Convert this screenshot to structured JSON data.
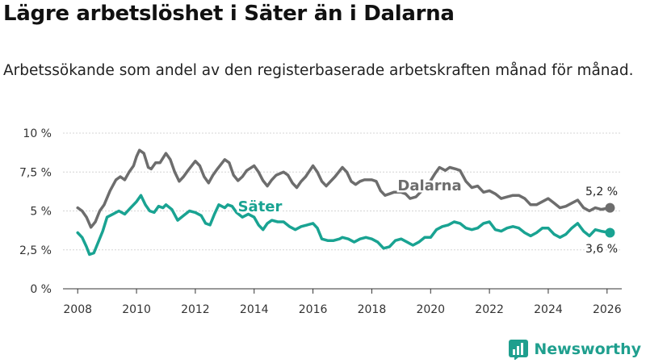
{
  "page": {
    "title": "Lägre arbetslöshet i Säter än i Dalarna",
    "subtitle": "Arbetssökande som andel av den registerbaserade arbetskraften månad för månad."
  },
  "brand": {
    "name": "Newsworthy",
    "color": "#1f9f8e"
  },
  "chart_data": {
    "type": "line",
    "ylim": [
      0,
      10
    ],
    "xlim": [
      2007.5,
      2026.5
    ],
    "y_ticks": [
      0,
      2.5,
      5,
      7.5,
      10
    ],
    "y_tick_labels": [
      "0 %",
      "2,5 %",
      "5 %",
      "7,5 %",
      "10 %"
    ],
    "x_ticks": [
      2008,
      2010,
      2012,
      2014,
      2016,
      2018,
      2020,
      2022,
      2024,
      2026
    ],
    "x_tick_labels": [
      "2008",
      "2010",
      "2012",
      "2014",
      "2016",
      "2018",
      "2020",
      "2022",
      "2024",
      "2026"
    ],
    "grid": "horizontal",
    "series": [
      {
        "name": "Dalarna",
        "color": "#6d6d6d",
        "end_label": "5,2 %",
        "points": [
          [
            2008.0,
            5.2
          ],
          [
            2008.15,
            5.0
          ],
          [
            2008.3,
            4.6
          ],
          [
            2008.45,
            3.95
          ],
          [
            2008.6,
            4.3
          ],
          [
            2008.75,
            5.0
          ],
          [
            2008.9,
            5.4
          ],
          [
            2009.1,
            6.3
          ],
          [
            2009.3,
            7.0
          ],
          [
            2009.45,
            7.2
          ],
          [
            2009.6,
            7.0
          ],
          [
            2009.75,
            7.5
          ],
          [
            2009.9,
            7.9
          ],
          [
            2010.0,
            8.5
          ],
          [
            2010.1,
            8.9
          ],
          [
            2010.25,
            8.7
          ],
          [
            2010.4,
            7.8
          ],
          [
            2010.5,
            7.7
          ],
          [
            2010.65,
            8.1
          ],
          [
            2010.8,
            8.1
          ],
          [
            2011.0,
            8.7
          ],
          [
            2011.15,
            8.3
          ],
          [
            2011.3,
            7.5
          ],
          [
            2011.45,
            6.9
          ],
          [
            2011.6,
            7.2
          ],
          [
            2011.75,
            7.6
          ],
          [
            2012.0,
            8.2
          ],
          [
            2012.15,
            7.9
          ],
          [
            2012.3,
            7.2
          ],
          [
            2012.45,
            6.8
          ],
          [
            2012.6,
            7.3
          ],
          [
            2012.75,
            7.7
          ],
          [
            2013.0,
            8.3
          ],
          [
            2013.15,
            8.1
          ],
          [
            2013.3,
            7.3
          ],
          [
            2013.45,
            6.95
          ],
          [
            2013.6,
            7.2
          ],
          [
            2013.75,
            7.6
          ],
          [
            2014.0,
            7.9
          ],
          [
            2014.15,
            7.5
          ],
          [
            2014.3,
            6.95
          ],
          [
            2014.45,
            6.6
          ],
          [
            2014.6,
            7.0
          ],
          [
            2014.75,
            7.3
          ],
          [
            2015.0,
            7.5
          ],
          [
            2015.15,
            7.3
          ],
          [
            2015.3,
            6.8
          ],
          [
            2015.45,
            6.5
          ],
          [
            2015.6,
            6.9
          ],
          [
            2015.75,
            7.2
          ],
          [
            2016.0,
            7.9
          ],
          [
            2016.15,
            7.5
          ],
          [
            2016.3,
            6.9
          ],
          [
            2016.45,
            6.6
          ],
          [
            2016.6,
            6.9
          ],
          [
            2016.75,
            7.2
          ],
          [
            2017.0,
            7.8
          ],
          [
            2017.15,
            7.5
          ],
          [
            2017.3,
            6.9
          ],
          [
            2017.45,
            6.7
          ],
          [
            2017.6,
            6.9
          ],
          [
            2017.75,
            7.0
          ],
          [
            2018.0,
            7.0
          ],
          [
            2018.15,
            6.9
          ],
          [
            2018.3,
            6.3
          ],
          [
            2018.45,
            6.0
          ],
          [
            2018.6,
            6.1
          ],
          [
            2018.75,
            6.2
          ],
          [
            2019.0,
            6.2
          ],
          [
            2019.15,
            6.1
          ],
          [
            2019.3,
            5.8
          ],
          [
            2019.5,
            5.9
          ],
          [
            2019.75,
            6.4
          ],
          [
            2020.0,
            6.95
          ],
          [
            2020.15,
            7.4
          ],
          [
            2020.3,
            7.8
          ],
          [
            2020.5,
            7.6
          ],
          [
            2020.65,
            7.8
          ],
          [
            2020.85,
            7.7
          ],
          [
            2021.0,
            7.6
          ],
          [
            2021.2,
            6.9
          ],
          [
            2021.4,
            6.5
          ],
          [
            2021.6,
            6.6
          ],
          [
            2021.8,
            6.2
          ],
          [
            2022.0,
            6.3
          ],
          [
            2022.2,
            6.1
          ],
          [
            2022.4,
            5.8
          ],
          [
            2022.6,
            5.9
          ],
          [
            2022.8,
            6.0
          ],
          [
            2023.0,
            6.0
          ],
          [
            2023.2,
            5.8
          ],
          [
            2023.4,
            5.4
          ],
          [
            2023.6,
            5.4
          ],
          [
            2023.8,
            5.6
          ],
          [
            2024.0,
            5.8
          ],
          [
            2024.2,
            5.5
          ],
          [
            2024.4,
            5.2
          ],
          [
            2024.6,
            5.3
          ],
          [
            2024.8,
            5.5
          ],
          [
            2025.0,
            5.7
          ],
          [
            2025.2,
            5.2
          ],
          [
            2025.4,
            5.0
          ],
          [
            2025.6,
            5.2
          ],
          [
            2025.8,
            5.1
          ],
          [
            2026.1,
            5.2
          ]
        ]
      },
      {
        "name": "Säter",
        "color": "#19a392",
        "end_label": "3,6 %",
        "points": [
          [
            2008.0,
            3.6
          ],
          [
            2008.15,
            3.3
          ],
          [
            2008.3,
            2.7
          ],
          [
            2008.4,
            2.2
          ],
          [
            2008.55,
            2.3
          ],
          [
            2008.7,
            3.0
          ],
          [
            2008.85,
            3.7
          ],
          [
            2009.0,
            4.6
          ],
          [
            2009.2,
            4.8
          ],
          [
            2009.4,
            5.0
          ],
          [
            2009.6,
            4.8
          ],
          [
            2009.8,
            5.2
          ],
          [
            2010.0,
            5.6
          ],
          [
            2010.15,
            6.0
          ],
          [
            2010.3,
            5.4
          ],
          [
            2010.45,
            5.0
          ],
          [
            2010.6,
            4.9
          ],
          [
            2010.75,
            5.3
          ],
          [
            2010.9,
            5.2
          ],
          [
            2011.0,
            5.4
          ],
          [
            2011.2,
            5.1
          ],
          [
            2011.4,
            4.4
          ],
          [
            2011.6,
            4.7
          ],
          [
            2011.8,
            5.0
          ],
          [
            2012.0,
            4.9
          ],
          [
            2012.2,
            4.7
          ],
          [
            2012.35,
            4.2
          ],
          [
            2012.5,
            4.1
          ],
          [
            2012.65,
            4.8
          ],
          [
            2012.8,
            5.4
          ],
          [
            2013.0,
            5.2
          ],
          [
            2013.1,
            5.4
          ],
          [
            2013.25,
            5.3
          ],
          [
            2013.4,
            4.9
          ],
          [
            2013.6,
            4.6
          ],
          [
            2013.8,
            4.8
          ],
          [
            2014.0,
            4.6
          ],
          [
            2014.15,
            4.1
          ],
          [
            2014.3,
            3.8
          ],
          [
            2014.45,
            4.2
          ],
          [
            2014.6,
            4.4
          ],
          [
            2014.8,
            4.3
          ],
          [
            2015.0,
            4.3
          ],
          [
            2015.2,
            4.0
          ],
          [
            2015.4,
            3.8
          ],
          [
            2015.6,
            4.0
          ],
          [
            2015.8,
            4.1
          ],
          [
            2016.0,
            4.2
          ],
          [
            2016.15,
            3.9
          ],
          [
            2016.3,
            3.2
          ],
          [
            2016.5,
            3.1
          ],
          [
            2016.7,
            3.1
          ],
          [
            2016.9,
            3.2
          ],
          [
            2017.0,
            3.3
          ],
          [
            2017.2,
            3.2
          ],
          [
            2017.4,
            3.0
          ],
          [
            2017.6,
            3.2
          ],
          [
            2017.8,
            3.3
          ],
          [
            2018.0,
            3.2
          ],
          [
            2018.2,
            3.0
          ],
          [
            2018.4,
            2.6
          ],
          [
            2018.6,
            2.7
          ],
          [
            2018.8,
            3.1
          ],
          [
            2019.0,
            3.2
          ],
          [
            2019.2,
            3.0
          ],
          [
            2019.4,
            2.8
          ],
          [
            2019.6,
            3.0
          ],
          [
            2019.8,
            3.3
          ],
          [
            2020.0,
            3.3
          ],
          [
            2020.2,
            3.8
          ],
          [
            2020.4,
            4.0
          ],
          [
            2020.6,
            4.1
          ],
          [
            2020.8,
            4.3
          ],
          [
            2021.0,
            4.2
          ],
          [
            2021.2,
            3.9
          ],
          [
            2021.4,
            3.8
          ],
          [
            2021.6,
            3.9
          ],
          [
            2021.8,
            4.2
          ],
          [
            2022.0,
            4.3
          ],
          [
            2022.2,
            3.8
          ],
          [
            2022.4,
            3.7
          ],
          [
            2022.6,
            3.9
          ],
          [
            2022.8,
            4.0
          ],
          [
            2023.0,
            3.9
          ],
          [
            2023.2,
            3.6
          ],
          [
            2023.4,
            3.4
          ],
          [
            2023.6,
            3.6
          ],
          [
            2023.8,
            3.9
          ],
          [
            2024.0,
            3.9
          ],
          [
            2024.2,
            3.5
          ],
          [
            2024.4,
            3.3
          ],
          [
            2024.6,
            3.5
          ],
          [
            2024.8,
            3.9
          ],
          [
            2025.0,
            4.2
          ],
          [
            2025.2,
            3.7
          ],
          [
            2025.4,
            3.4
          ],
          [
            2025.6,
            3.8
          ],
          [
            2025.8,
            3.7
          ],
          [
            2026.1,
            3.6
          ]
        ]
      }
    ]
  }
}
